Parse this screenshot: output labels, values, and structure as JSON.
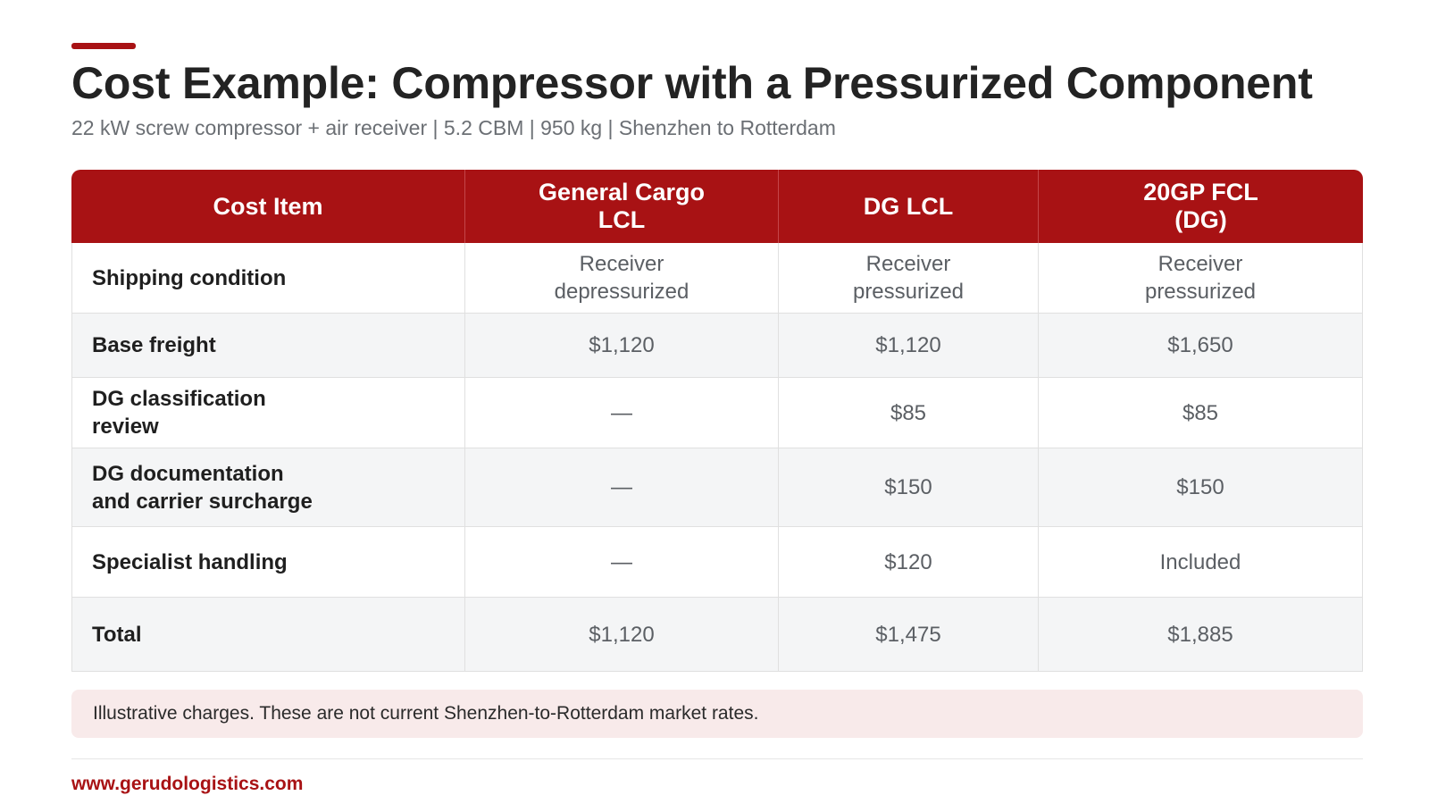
{
  "header": {
    "title": "Cost Example: Compressor with a Pressurized Component",
    "subtitle": "22 kW screw compressor + air receiver | 5.2 CBM | 950 kg | Shenzhen to Rotterdam"
  },
  "table": {
    "columns": [
      "Cost Item",
      "General Cargo\nLCL",
      "DG LCL",
      "20GP FCL\n(DG)"
    ],
    "rows": [
      {
        "item": "Shipping condition",
        "general_cargo_lcl": "Receiver\ndepressurized",
        "dg_lcl": "Receiver\npressurized",
        "fcl_20gp_dg": "Receiver\npressurized"
      },
      {
        "item": "Base freight",
        "general_cargo_lcl": "$1,120",
        "dg_lcl": "$1,120",
        "fcl_20gp_dg": "$1,650"
      },
      {
        "item": "DG classification\nreview",
        "general_cargo_lcl": "—",
        "dg_lcl": "$85",
        "fcl_20gp_dg": "$85"
      },
      {
        "item": "DG documentation\nand carrier surcharge",
        "general_cargo_lcl": "—",
        "dg_lcl": "$150",
        "fcl_20gp_dg": "$150"
      },
      {
        "item": "Specialist handling",
        "general_cargo_lcl": "—",
        "dg_lcl": "$120",
        "fcl_20gp_dg": "Included"
      },
      {
        "item": "Total",
        "general_cargo_lcl": "$1,120",
        "dg_lcl": "$1,475",
        "fcl_20gp_dg": "$1,885"
      }
    ]
  },
  "note": "Illustrative charges. These are not current Shenzhen-to-Rotterdam market rates.",
  "footer": {
    "url": "www.gerudologistics.com"
  },
  "colors": {
    "accent": "#a81214",
    "note_bg": "#f8eaea",
    "stripe": "#f4f5f6"
  }
}
